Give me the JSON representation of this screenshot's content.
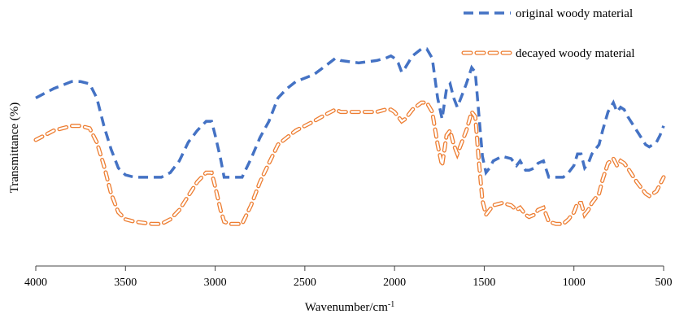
{
  "chart_data": {
    "type": "line",
    "title": "",
    "xlabel": "Wavenumber/cm",
    "xlabel_superscript": "-1",
    "ylabel": "Transmittance (%)",
    "xlim": [
      4000,
      500
    ],
    "x_reversed": true,
    "ylim": [
      0,
      100
    ],
    "y_ticks_shown": false,
    "x_ticks": [
      4000,
      3500,
      3000,
      2500,
      2000,
      1500,
      1000,
      500
    ],
    "grid": false,
    "legend_position": "top-right",
    "series": [
      {
        "name": "original woody material",
        "color": "#4472C4",
        "style": "dashed",
        "points": [
          [
            4000,
            72
          ],
          [
            3900,
            76
          ],
          [
            3800,
            79
          ],
          [
            3750,
            79
          ],
          [
            3700,
            78
          ],
          [
            3660,
            72
          ],
          [
            3620,
            60
          ],
          [
            3580,
            50
          ],
          [
            3540,
            42
          ],
          [
            3500,
            39
          ],
          [
            3450,
            38
          ],
          [
            3350,
            38
          ],
          [
            3300,
            38
          ],
          [
            3250,
            40
          ],
          [
            3200,
            45
          ],
          [
            3150,
            53
          ],
          [
            3100,
            58
          ],
          [
            3050,
            62
          ],
          [
            3020,
            62
          ],
          [
            3000,
            56
          ],
          [
            2970,
            46
          ],
          [
            2950,
            38
          ],
          [
            2920,
            38
          ],
          [
            2850,
            38
          ],
          [
            2800,
            46
          ],
          [
            2750,
            55
          ],
          [
            2700,
            62
          ],
          [
            2650,
            72
          ],
          [
            2600,
            76
          ],
          [
            2550,
            79
          ],
          [
            2450,
            82
          ],
          [
            2380,
            86
          ],
          [
            2330,
            89
          ],
          [
            2300,
            88
          ],
          [
            2200,
            87
          ],
          [
            2100,
            88
          ],
          [
            2050,
            89
          ],
          [
            2020,
            90
          ],
          [
            2000,
            89
          ],
          [
            1980,
            87
          ],
          [
            1960,
            83
          ],
          [
            1940,
            85
          ],
          [
            1900,
            90
          ],
          [
            1850,
            93
          ],
          [
            1820,
            93
          ],
          [
            1790,
            89
          ],
          [
            1760,
            72
          ],
          [
            1735,
            63
          ],
          [
            1710,
            76
          ],
          [
            1690,
            78
          ],
          [
            1670,
            72
          ],
          [
            1650,
            68
          ],
          [
            1630,
            72
          ],
          [
            1600,
            78
          ],
          [
            1570,
            85
          ],
          [
            1550,
            83
          ],
          [
            1530,
            65
          ],
          [
            1510,
            47
          ],
          [
            1490,
            40
          ],
          [
            1470,
            42
          ],
          [
            1450,
            45
          ],
          [
            1400,
            47
          ],
          [
            1350,
            46
          ],
          [
            1320,
            43
          ],
          [
            1300,
            45
          ],
          [
            1270,
            41
          ],
          [
            1250,
            41
          ],
          [
            1220,
            42
          ],
          [
            1200,
            44
          ],
          [
            1170,
            45
          ],
          [
            1140,
            38
          ],
          [
            1100,
            38
          ],
          [
            1060,
            38
          ],
          [
            1030,
            40
          ],
          [
            1000,
            43
          ],
          [
            980,
            48
          ],
          [
            960,
            48
          ],
          [
            940,
            42
          ],
          [
            920,
            44
          ],
          [
            900,
            48
          ],
          [
            880,
            50
          ],
          [
            860,
            52
          ],
          [
            840,
            58
          ],
          [
            810,
            66
          ],
          [
            780,
            70
          ],
          [
            760,
            66
          ],
          [
            740,
            68
          ],
          [
            720,
            67
          ],
          [
            700,
            64
          ],
          [
            650,
            58
          ],
          [
            600,
            52
          ],
          [
            580,
            51
          ],
          [
            540,
            53
          ],
          [
            520,
            56
          ],
          [
            500,
            60
          ]
        ]
      },
      {
        "name": "decayed woody material",
        "color": "#ED7D31",
        "style": "dashed-outline",
        "points": [
          [
            4000,
            54
          ],
          [
            3900,
            58
          ],
          [
            3800,
            60
          ],
          [
            3750,
            60
          ],
          [
            3700,
            59
          ],
          [
            3660,
            53
          ],
          [
            3620,
            43
          ],
          [
            3580,
            31
          ],
          [
            3540,
            23
          ],
          [
            3500,
            20
          ],
          [
            3450,
            19
          ],
          [
            3350,
            18
          ],
          [
            3300,
            18
          ],
          [
            3250,
            20
          ],
          [
            3200,
            24
          ],
          [
            3150,
            30
          ],
          [
            3100,
            36
          ],
          [
            3050,
            40
          ],
          [
            3020,
            40
          ],
          [
            3000,
            34
          ],
          [
            2970,
            24
          ],
          [
            2950,
            19
          ],
          [
            2920,
            18
          ],
          [
            2850,
            18
          ],
          [
            2800,
            26
          ],
          [
            2750,
            36
          ],
          [
            2700,
            44
          ],
          [
            2650,
            52
          ],
          [
            2600,
            55
          ],
          [
            2550,
            58
          ],
          [
            2450,
            62
          ],
          [
            2380,
            65
          ],
          [
            2330,
            67
          ],
          [
            2300,
            66
          ],
          [
            2200,
            66
          ],
          [
            2100,
            66
          ],
          [
            2050,
            67
          ],
          [
            2020,
            67
          ],
          [
            2000,
            66
          ],
          [
            1980,
            64
          ],
          [
            1960,
            62
          ],
          [
            1940,
            63
          ],
          [
            1900,
            67
          ],
          [
            1850,
            70
          ],
          [
            1820,
            70
          ],
          [
            1790,
            66
          ],
          [
            1760,
            52
          ],
          [
            1735,
            43
          ],
          [
            1710,
            56
          ],
          [
            1690,
            58
          ],
          [
            1670,
            52
          ],
          [
            1650,
            48
          ],
          [
            1630,
            52
          ],
          [
            1600,
            58
          ],
          [
            1570,
            66
          ],
          [
            1550,
            64
          ],
          [
            1530,
            45
          ],
          [
            1510,
            28
          ],
          [
            1490,
            22
          ],
          [
            1470,
            24
          ],
          [
            1450,
            26
          ],
          [
            1400,
            27
          ],
          [
            1350,
            26
          ],
          [
            1320,
            24
          ],
          [
            1300,
            25
          ],
          [
            1270,
            22
          ],
          [
            1250,
            21
          ],
          [
            1220,
            22
          ],
          [
            1200,
            24
          ],
          [
            1170,
            25
          ],
          [
            1140,
            19
          ],
          [
            1100,
            18
          ],
          [
            1060,
            18
          ],
          [
            1030,
            20
          ],
          [
            1000,
            23
          ],
          [
            980,
            27
          ],
          [
            960,
            27
          ],
          [
            940,
            22
          ],
          [
            920,
            24
          ],
          [
            900,
            27
          ],
          [
            880,
            29
          ],
          [
            860,
            31
          ],
          [
            840,
            37
          ],
          [
            810,
            44
          ],
          [
            780,
            46
          ],
          [
            760,
            43
          ],
          [
            740,
            45
          ],
          [
            720,
            44
          ],
          [
            700,
            42
          ],
          [
            650,
            36
          ],
          [
            600,
            31
          ],
          [
            580,
            30
          ],
          [
            540,
            32
          ],
          [
            520,
            35
          ],
          [
            500,
            38
          ]
        ]
      }
    ]
  }
}
